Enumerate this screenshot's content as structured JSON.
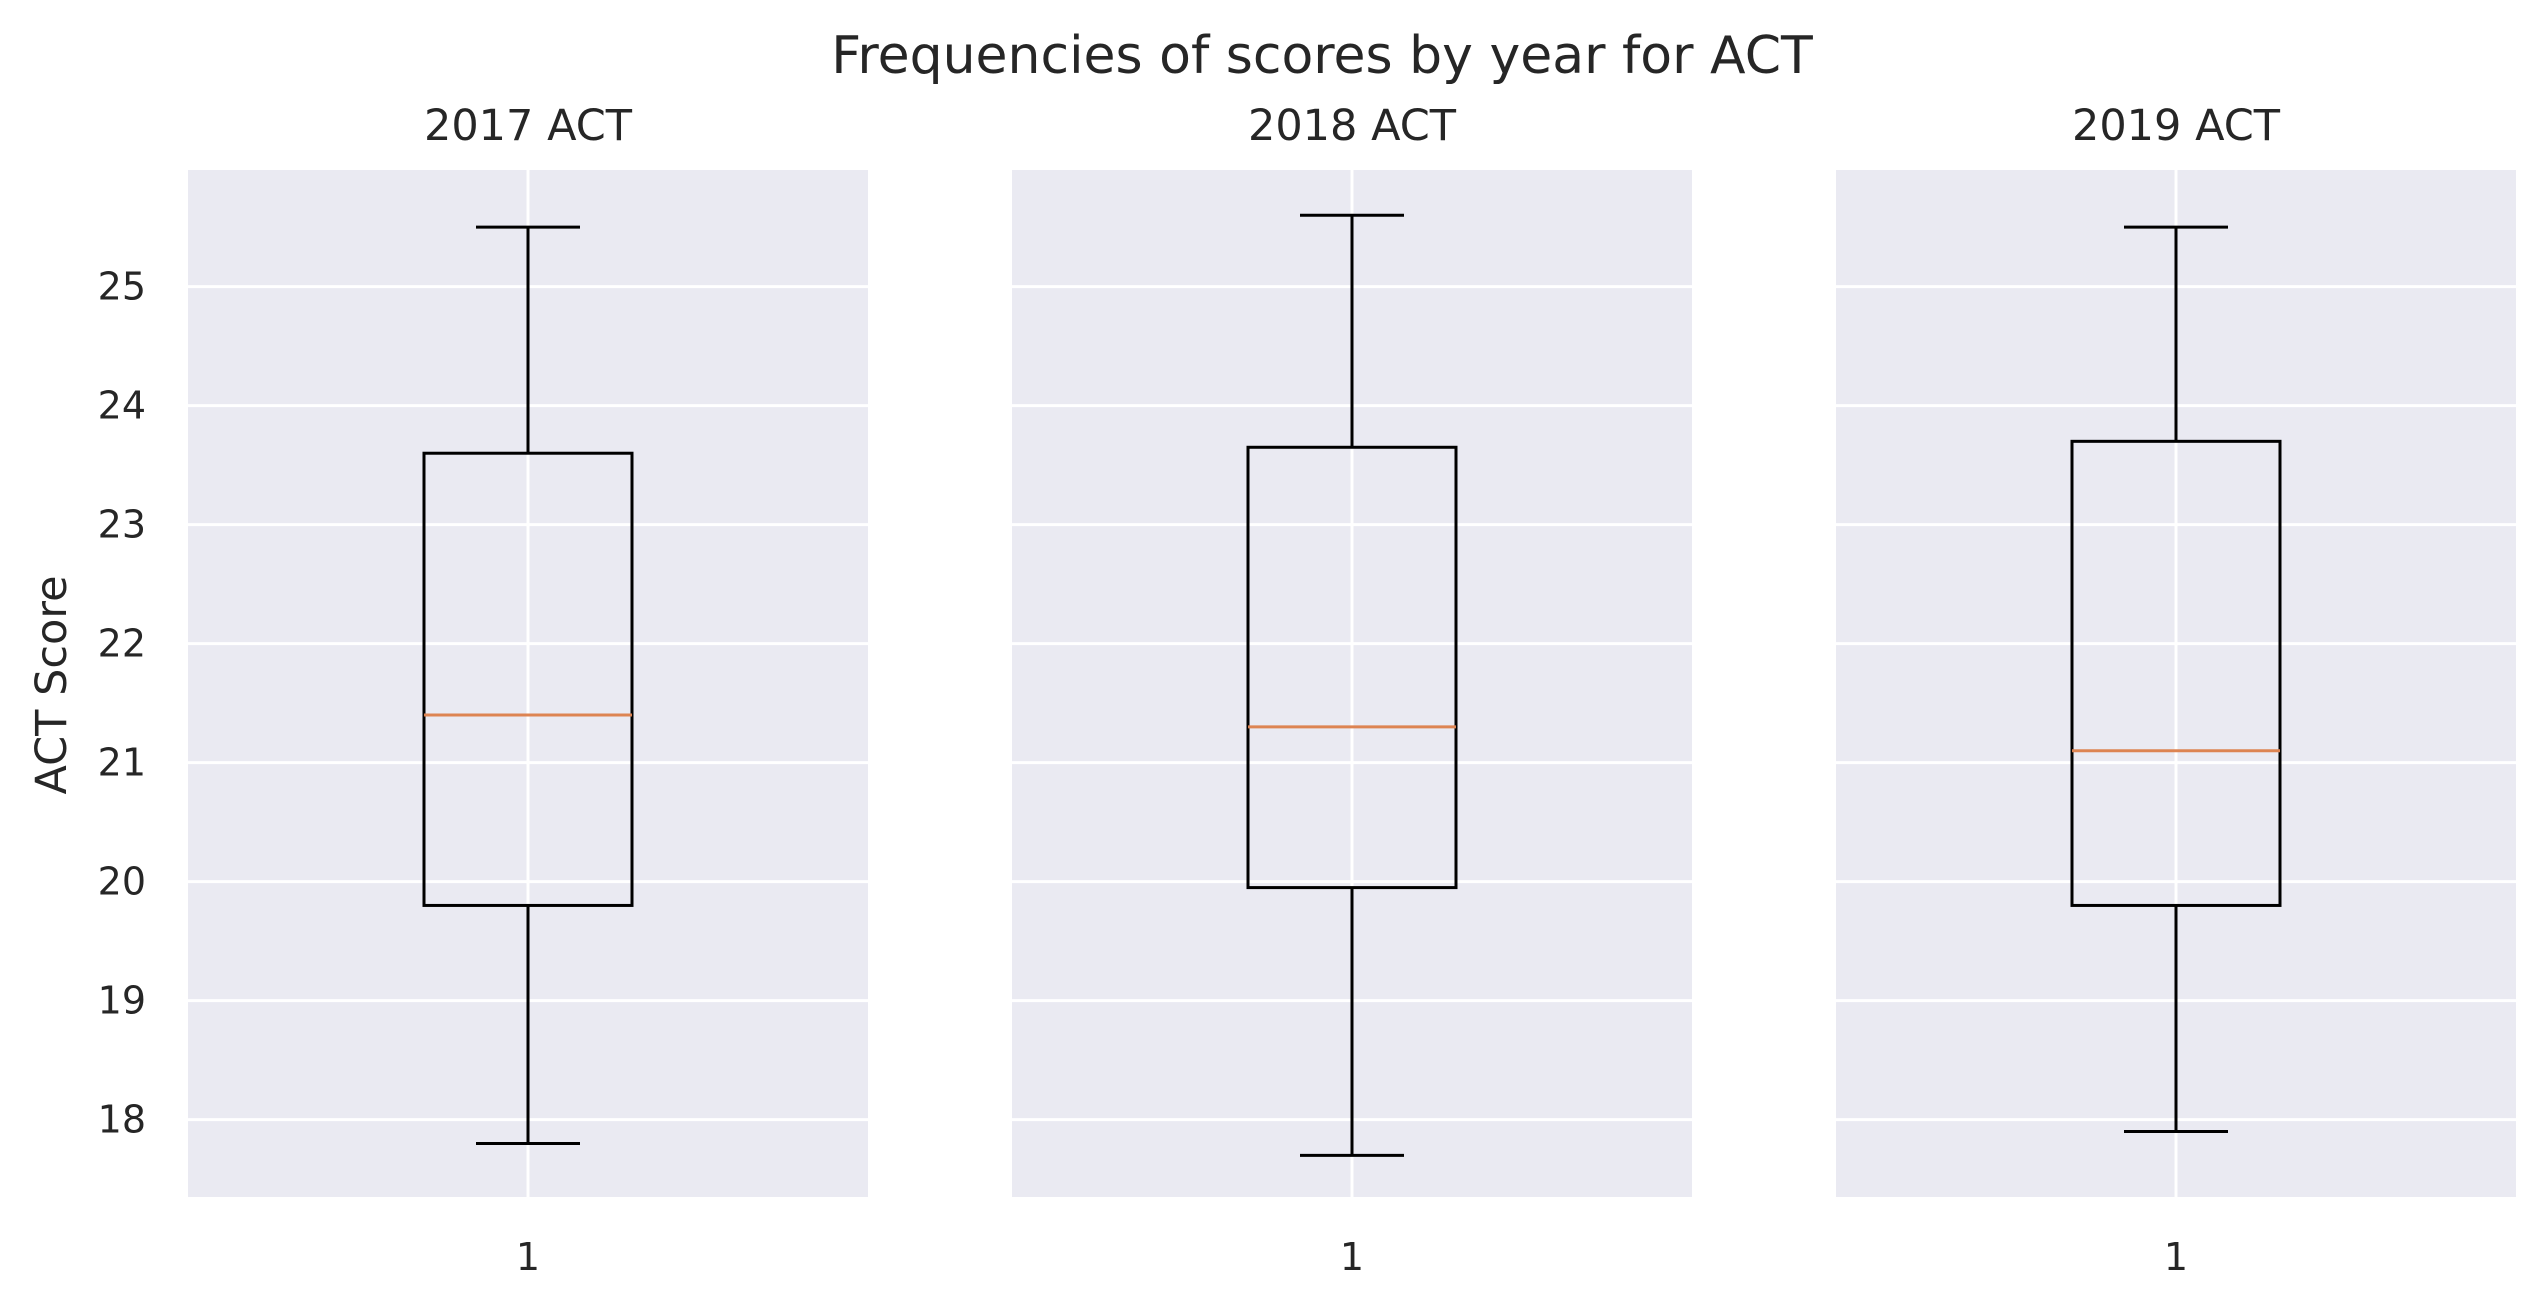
{
  "suptitle": "Frequencies of scores by year for ACT",
  "chart_data": {
    "type": "boxplot",
    "ylabel": "ACT Score",
    "ylim": [
      17.35,
      25.98
    ],
    "yticks": [
      18,
      19,
      20,
      21,
      22,
      23,
      24,
      25
    ],
    "grid": true,
    "colors": {
      "background": "#EAEAF2",
      "grid": "#FFFFFF",
      "box": "#000000",
      "median": "#DD8452"
    },
    "panels": [
      {
        "title": "2017 ACT",
        "xtick": "1",
        "whisker_low": 17.8,
        "q1": 19.8,
        "median": 21.4,
        "q3": 23.6,
        "whisker_high": 25.5
      },
      {
        "title": "2018 ACT",
        "xtick": "1",
        "whisker_low": 17.7,
        "q1": 19.95,
        "median": 21.3,
        "q3": 23.65,
        "whisker_high": 25.6
      },
      {
        "title": "2019 ACT",
        "xtick": "1",
        "whisker_low": 17.9,
        "q1": 19.8,
        "median": 21.1,
        "q3": 23.7,
        "whisker_high": 25.5
      }
    ]
  }
}
